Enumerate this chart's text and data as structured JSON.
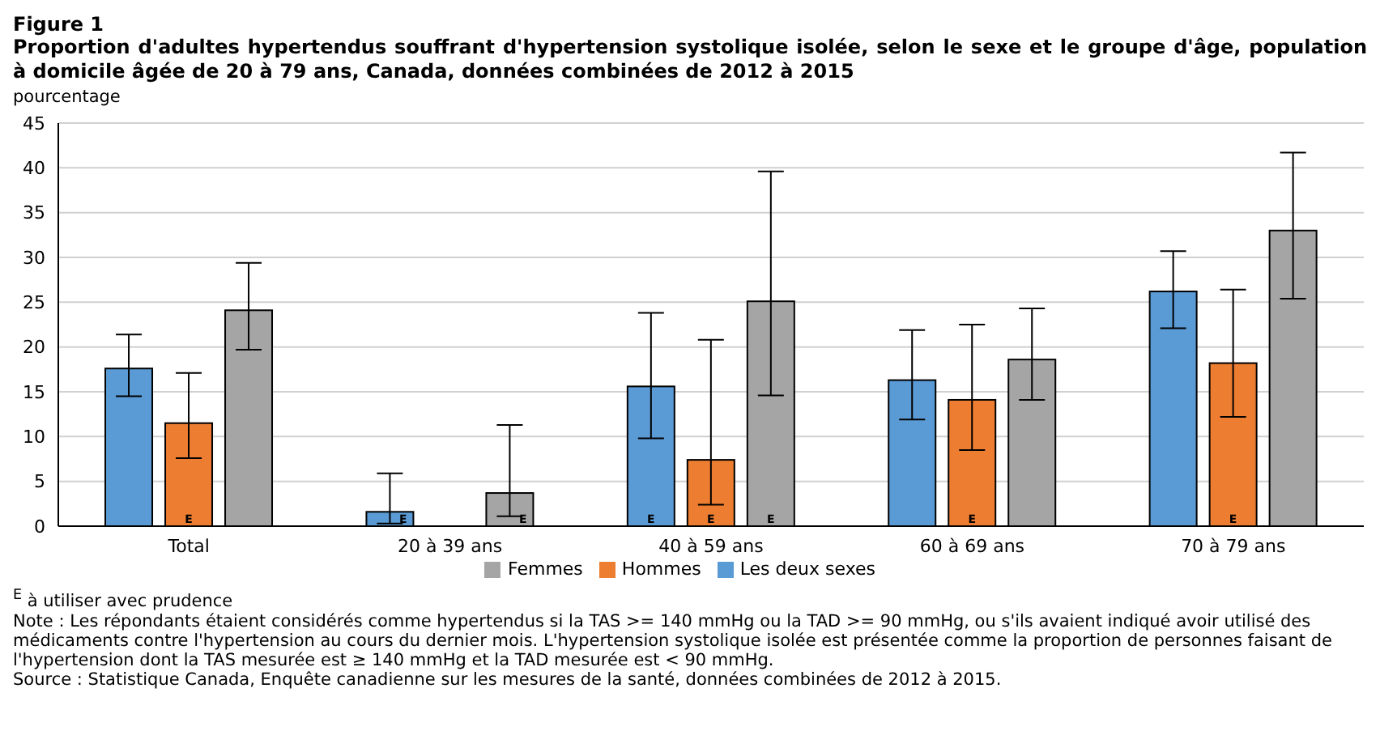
{
  "chart_data": {
    "type": "bar",
    "title": "Figure 1",
    "subtitle": "Proportion d'adultes hypertendus souffrant d'hypertension systolique isolée, selon le sexe et le groupe d'âge, population à domicile âgée de 20 à 79 ans, Canada, données combinées de 2012 à 2015",
    "ylabel": "pourcentage",
    "categories": [
      "Total",
      "20 à 39 ans",
      "40 à 59 ans",
      "60 à 69 ans",
      "70 à 79 ans"
    ],
    "series": [
      {
        "name": "Les deux sexes",
        "color": "#5b9bd5",
        "values": [
          17.6,
          1.6,
          15.6,
          16.3,
          26.2
        ],
        "errors": [
          [
            14.5,
            21.4
          ],
          [
            0.3,
            5.9
          ],
          [
            9.8,
            23.8
          ],
          [
            11.9,
            21.9
          ],
          [
            22.1,
            30.7
          ]
        ],
        "value_labels": [
          null,
          "E",
          "E",
          null,
          null
        ]
      },
      {
        "name": "Hommes",
        "color": "#ed7d31",
        "values": [
          11.5,
          null,
          7.4,
          14.1,
          18.2
        ],
        "errors": [
          [
            7.6,
            17.1
          ],
          null,
          [
            2.4,
            20.8
          ],
          [
            8.5,
            22.5
          ],
          [
            12.2,
            26.4
          ]
        ],
        "value_labels": [
          "E",
          null,
          "E",
          "E",
          "E"
        ]
      },
      {
        "name": "Femmes",
        "color": "#a5a5a5",
        "values": [
          24.1,
          3.7,
          25.1,
          18.6,
          33.0
        ],
        "errors": [
          [
            19.7,
            29.4
          ],
          [
            1.1,
            11.3
          ],
          [
            14.6,
            39.6
          ],
          [
            14.1,
            24.3
          ],
          [
            25.4,
            41.7
          ]
        ],
        "value_labels": [
          null,
          "E",
          "E",
          null,
          null
        ]
      }
    ],
    "ylim": [
      0,
      45
    ],
    "yticks": [
      0,
      5,
      10,
      15,
      20,
      25,
      30,
      35,
      40,
      45
    ],
    "grid": "y",
    "legend": "bottom",
    "annotations": [
      "$^{E}$ à utiliser avec prudence",
      "Note : Les répondants étaient considérés comme hypertendus si la TAS >= 140 mmHg ou la TAD >= 90 mmHg, ou s'ils avaient indiqué avoir utilisé des médicaments contre l'hypertension au cours du dernier mois. L'hypertension systolique isolée est présentée comme la proportion de personnes faisant de l'hypertension dont la TAS mesurée est ≥ 140 mmHg et la TAD mesurée est < 90 mmHg.",
      "Source : Statistique Canada, Enquête canadienne sur les mesures de la santé, données combinées de 2012 à 2015."
    ]
  }
}
